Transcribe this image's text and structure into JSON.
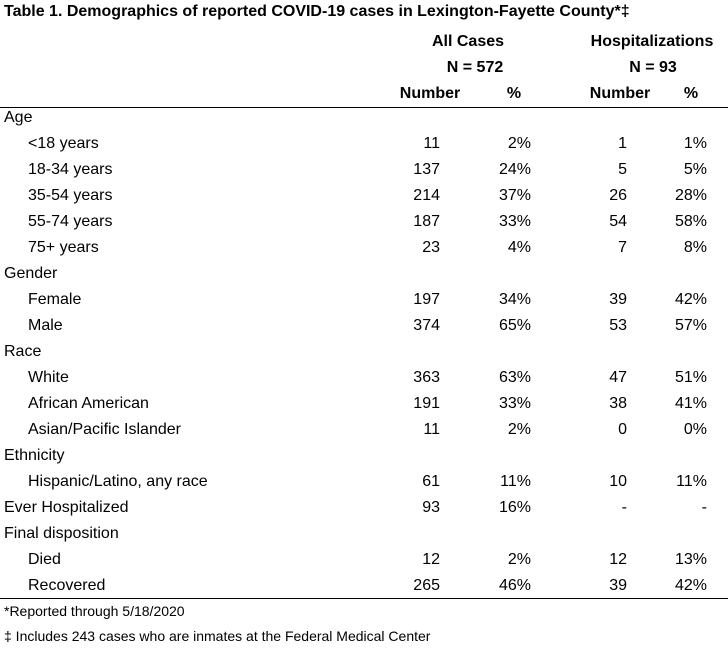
{
  "title": "Table 1. Demographics of reported COVID-19 cases in Lexington-Fayette County*‡",
  "groups": [
    {
      "name": "All Cases",
      "n": "N = 572"
    },
    {
      "name": "Hospitalizations",
      "n": "N = 93"
    }
  ],
  "col_headers": {
    "number": "Number",
    "pct": "%"
  },
  "rows": [
    {
      "label": "Age",
      "header": true
    },
    {
      "label": "<18 years",
      "n1": "11",
      "p1": "2%",
      "n2": "1",
      "p2": "1%"
    },
    {
      "label": "18-34 years",
      "n1": "137",
      "p1": "24%",
      "n2": "5",
      "p2": "5%"
    },
    {
      "label": "35-54 years",
      "n1": "214",
      "p1": "37%",
      "n2": "26",
      "p2": "28%"
    },
    {
      "label": "55-74 years",
      "n1": "187",
      "p1": "33%",
      "n2": "54",
      "p2": "58%"
    },
    {
      "label": "75+ years",
      "n1": "23",
      "p1": "4%",
      "n2": "7",
      "p2": "8%"
    },
    {
      "label": "Gender",
      "header": true
    },
    {
      "label": "Female",
      "n1": "197",
      "p1": "34%",
      "n2": "39",
      "p2": "42%"
    },
    {
      "label": "Male",
      "n1": "374",
      "p1": "65%",
      "n2": "53",
      "p2": "57%"
    },
    {
      "label": "Race",
      "header": true
    },
    {
      "label": "White",
      "n1": "363",
      "p1": "63%",
      "n2": "47",
      "p2": "51%"
    },
    {
      "label": "African American",
      "n1": "191",
      "p1": "33%",
      "n2": "38",
      "p2": "41%"
    },
    {
      "label": "Asian/Pacific Islander",
      "n1": "11",
      "p1": "2%",
      "n2": "0",
      "p2": "0%"
    },
    {
      "label": "Ethnicity",
      "header": true
    },
    {
      "label": "Hispanic/Latino, any race",
      "n1": "61",
      "p1": "11%",
      "n2": "10",
      "p2": "11%"
    },
    {
      "label": "Ever Hospitalized",
      "header": true,
      "n1": "93",
      "p1": "16%",
      "n2": "-",
      "p2": "-"
    },
    {
      "label": "Final disposition",
      "header": true
    },
    {
      "label": "Died",
      "n1": "12",
      "p1": "2%",
      "n2": "12",
      "p2": "13%"
    },
    {
      "label": "Recovered",
      "n1": "265",
      "p1": "46%",
      "n2": "39",
      "p2": "42%"
    }
  ],
  "footnotes": [
    "*Reported through 5/18/2020",
    "‡ Includes 243 cases who are inmates at the Federal Medical Center"
  ]
}
